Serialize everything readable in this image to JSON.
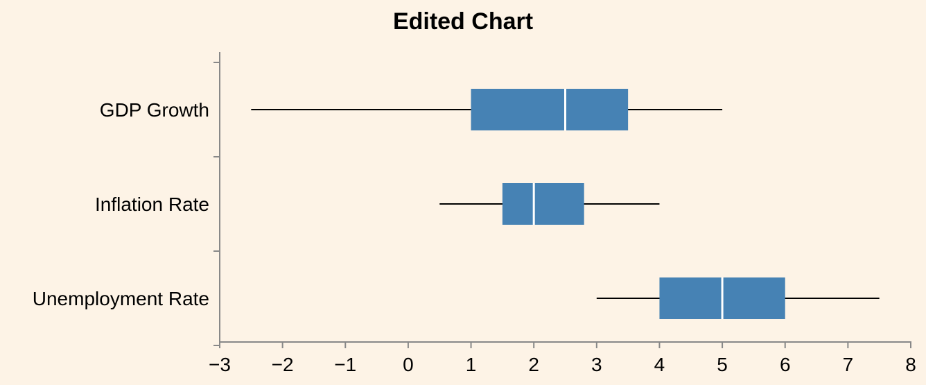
{
  "chart_data": {
    "type": "boxplot",
    "orientation": "horizontal",
    "title": "Edited Chart",
    "xlabel": "",
    "ylabel": "",
    "xlim": [
      -3,
      8
    ],
    "x_ticks": [
      -3,
      -2,
      -1,
      0,
      1,
      2,
      3,
      4,
      5,
      6,
      7,
      8
    ],
    "x_tick_labels": [
      "−3",
      "−2",
      "−1",
      "0",
      "1",
      "2",
      "3",
      "4",
      "5",
      "6",
      "7",
      "8"
    ],
    "categories": [
      "GDP Growth",
      "Inflation Rate",
      "Unemployment Rate"
    ],
    "boxes": [
      {
        "category": "GDP Growth",
        "min": -2.5,
        "q1": 1.0,
        "median": 2.5,
        "q3": 3.5,
        "max": 5.0
      },
      {
        "category": "Inflation Rate",
        "min": 0.5,
        "q1": 1.5,
        "median": 2.0,
        "q3": 2.8,
        "max": 4.0
      },
      {
        "category": "Unemployment Rate",
        "min": 3.0,
        "q1": 4.0,
        "median": 5.0,
        "q3": 6.0,
        "max": 7.5
      }
    ],
    "grid": false,
    "colors": {
      "background": "#fdf3e6",
      "box_fill": "#4682b4",
      "median_line": "#ffffff",
      "whisker": "#000000",
      "axis": "#888888"
    }
  }
}
